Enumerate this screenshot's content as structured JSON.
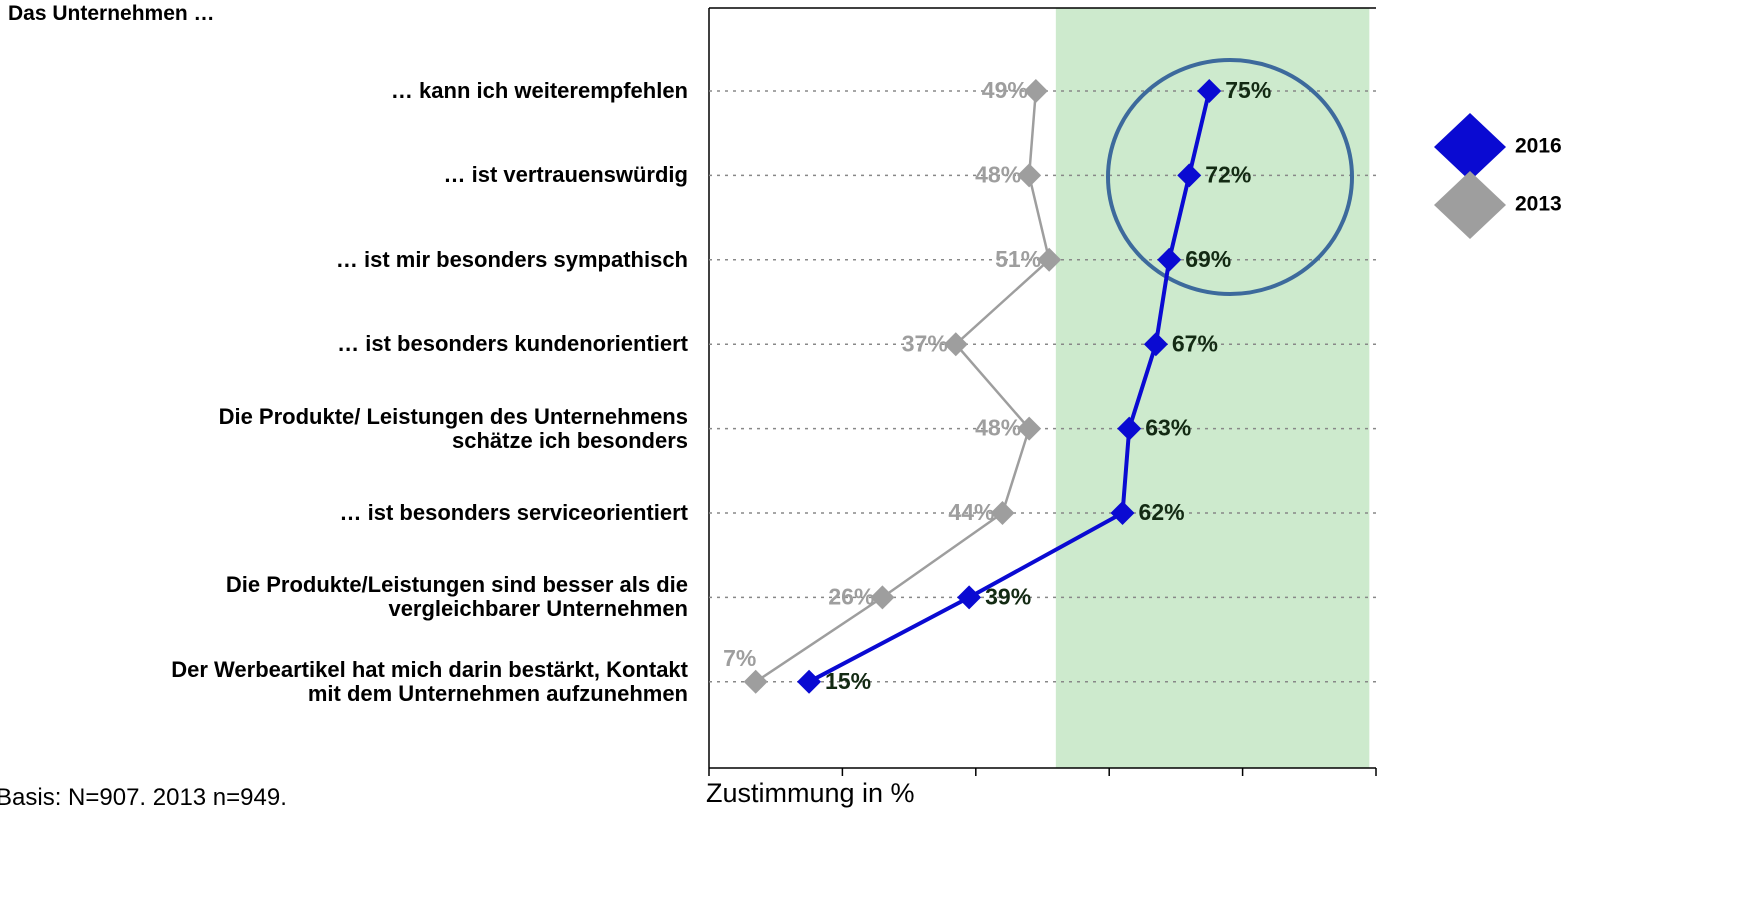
{
  "chart_data": {
    "type": "line",
    "orientation": "horizontal",
    "title": "Das Unternehmen …",
    "xlabel": "Zustimmung in %",
    "footnote": "Basis: N=907. 2013 n=949.",
    "categories": [
      "… kann ich weiterempfehlen",
      "… ist vertrauenswürdig",
      "… ist mir besonders sympathisch",
      "… ist besonders kundenorientiert",
      "Die Produkte/ Leistungen des Unternehmens\nschätze ich besonders",
      "…  ist besonders serviceorientiert",
      "Die Produkte/Leistungen sind besser als die\nvergleichbarer Unternehmen",
      "Der Werbeartikel hat mich darin bestärkt, Kontakt\nmit dem Unternehmen aufzunehmen"
    ],
    "series": [
      {
        "name": "2016",
        "color": "#0a0ad2",
        "label_color": "#132a13",
        "values": [
          75,
          72,
          69,
          67,
          63,
          62,
          39,
          15
        ],
        "value_labels": [
          "75%",
          "72%",
          "69%",
          "67%",
          "63%",
          "62%",
          "39%",
          "15%"
        ]
      },
      {
        "name": "2013",
        "color": "#9e9e9e",
        "label_color": "#9e9e9e",
        "values": [
          49,
          48,
          51,
          37,
          48,
          44,
          26,
          7
        ],
        "value_labels": [
          "49%",
          "48%",
          "51%",
          "37%",
          "48%",
          "44%",
          "26%",
          "7%"
        ]
      }
    ],
    "xlim": [
      0,
      100
    ],
    "xticks": [
      0,
      20,
      40,
      60,
      80,
      100
    ],
    "highlight_range": [
      52,
      99
    ],
    "highlight_color": "#cdeacd",
    "grid": true,
    "legend": "right"
  }
}
